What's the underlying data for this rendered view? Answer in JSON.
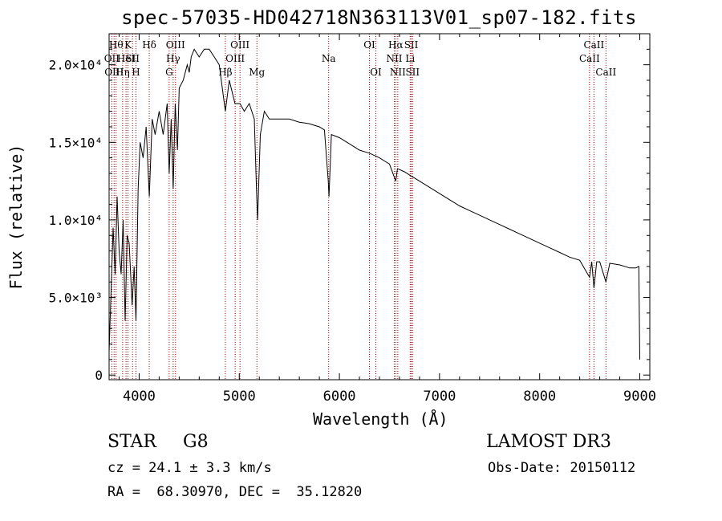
{
  "chart_data": {
    "type": "line",
    "title": "spec-57035-HD042718N363113V01_sp07-182.fits",
    "xlabel": "Wavelength (Å)",
    "ylabel": "Flux (relative)",
    "xlim": [
      3700,
      9100
    ],
    "ylim": [
      -300,
      22000
    ],
    "x_ticks": [
      {
        "value": 4000,
        "label": "4000"
      },
      {
        "value": 5000,
        "label": "5000"
      },
      {
        "value": 6000,
        "label": "6000"
      },
      {
        "value": 7000,
        "label": "7000"
      },
      {
        "value": 8000,
        "label": "8000"
      },
      {
        "value": 9000,
        "label": "9000"
      }
    ],
    "y_ticks": [
      {
        "value": 0,
        "label": "0"
      },
      {
        "value": 5000,
        "label": "5.0×10³"
      },
      {
        "value": 10000,
        "label": "1.0×10⁴"
      },
      {
        "value": 15000,
        "label": "1.5×10⁴"
      },
      {
        "value": 20000,
        "label": "2.0×10⁴"
      }
    ],
    "series": [
      {
        "name": "spectrum",
        "points": [
          [
            3700,
            1500
          ],
          [
            3720,
            5500
          ],
          [
            3740,
            9500
          ],
          [
            3760,
            6500
          ],
          [
            3780,
            11500
          ],
          [
            3800,
            8000
          ],
          [
            3820,
            6500
          ],
          [
            3840,
            10000
          ],
          [
            3860,
            3500
          ],
          [
            3880,
            9000
          ],
          [
            3900,
            8500
          ],
          [
            3930,
            4500
          ],
          [
            3950,
            7000
          ],
          [
            3968,
            3500
          ],
          [
            3990,
            12000
          ],
          [
            4010,
            15000
          ],
          [
            4040,
            14000
          ],
          [
            4070,
            16000
          ],
          [
            4101,
            11500
          ],
          [
            4130,
            16500
          ],
          [
            4160,
            15500
          ],
          [
            4200,
            17000
          ],
          [
            4240,
            15500
          ],
          [
            4280,
            17500
          ],
          [
            4300,
            13000
          ],
          [
            4320,
            16500
          ],
          [
            4340,
            12000
          ],
          [
            4360,
            17500
          ],
          [
            4383,
            14500
          ],
          [
            4400,
            18500
          ],
          [
            4440,
            19000
          ],
          [
            4480,
            20000
          ],
          [
            4500,
            19500
          ],
          [
            4520,
            20500
          ],
          [
            4550,
            21000
          ],
          [
            4600,
            20500
          ],
          [
            4650,
            21000
          ],
          [
            4700,
            21000
          ],
          [
            4750,
            20500
          ],
          [
            4800,
            20000
          ],
          [
            4861,
            17000
          ],
          [
            4900,
            19000
          ],
          [
            4957,
            17500
          ],
          [
            5007,
            17500
          ],
          [
            5050,
            17000
          ],
          [
            5100,
            17500
          ],
          [
            5150,
            16500
          ],
          [
            5172,
            12000
          ],
          [
            5183,
            10000
          ],
          [
            5210,
            15500
          ],
          [
            5250,
            17000
          ],
          [
            5300,
            16500
          ],
          [
            5400,
            16500
          ],
          [
            5500,
            16500
          ],
          [
            5600,
            16300
          ],
          [
            5700,
            16200
          ],
          [
            5800,
            16000
          ],
          [
            5850,
            15800
          ],
          [
            5889,
            12500
          ],
          [
            5896,
            11500
          ],
          [
            5920,
            15500
          ],
          [
            6000,
            15300
          ],
          [
            6100,
            14900
          ],
          [
            6150,
            14700
          ],
          [
            6200,
            14500
          ],
          [
            6300,
            14300
          ],
          [
            6400,
            14000
          ],
          [
            6450,
            13800
          ],
          [
            6500,
            13600
          ],
          [
            6563,
            12500
          ],
          [
            6580,
            13300
          ],
          [
            6650,
            13100
          ],
          [
            6700,
            12900
          ],
          [
            6800,
            12500
          ],
          [
            6900,
            12100
          ],
          [
            7000,
            11700
          ],
          [
            7100,
            11300
          ],
          [
            7200,
            10900
          ],
          [
            7300,
            10600
          ],
          [
            7400,
            10300
          ],
          [
            7500,
            10000
          ],
          [
            7600,
            9700
          ],
          [
            7700,
            9400
          ],
          [
            7800,
            9100
          ],
          [
            7900,
            8800
          ],
          [
            8000,
            8500
          ],
          [
            8100,
            8200
          ],
          [
            8200,
            7900
          ],
          [
            8300,
            7600
          ],
          [
            8400,
            7400
          ],
          [
            8498,
            6300
          ],
          [
            8520,
            7300
          ],
          [
            8542,
            5600
          ],
          [
            8570,
            7300
          ],
          [
            8600,
            7300
          ],
          [
            8662,
            6000
          ],
          [
            8700,
            7200
          ],
          [
            8800,
            7100
          ],
          [
            8900,
            6900
          ],
          [
            8960,
            6900
          ],
          [
            8990,
            7000
          ],
          [
            9000,
            1000
          ]
        ]
      }
    ],
    "line_markers": [
      {
        "wavelength": 3727,
        "label": "OII",
        "row": 2
      },
      {
        "wavelength": 3750,
        "label": "OIII",
        "row": 3
      },
      {
        "wavelength": 3770,
        "label": "Hθ",
        "row": 1
      },
      {
        "wavelength": 3835,
        "label": "Hη",
        "row": 3
      },
      {
        "wavelength": 3869,
        "label": "HeI",
        "row": 2
      },
      {
        "wavelength": 3889,
        "label": "K",
        "row": 1
      },
      {
        "wavelength": 3934,
        "label": "SII",
        "row": 2
      },
      {
        "wavelength": 3968,
        "label": "H",
        "row": 3
      },
      {
        "wavelength": 4101,
        "label": "Hδ",
        "row": 1
      },
      {
        "wavelength": 4300,
        "label": "G",
        "row": 3
      },
      {
        "wavelength": 4340,
        "label": "Hγ",
        "row": 2
      },
      {
        "wavelength": 4363,
        "label": "OIII",
        "row": 1
      },
      {
        "wavelength": 4861,
        "label": "Hβ",
        "row": 3
      },
      {
        "wavelength": 4959,
        "label": "OIII",
        "row": 2
      },
      {
        "wavelength": 5007,
        "label": "OIII",
        "row": 1
      },
      {
        "wavelength": 5176,
        "label": "Mg",
        "row": 3
      },
      {
        "wavelength": 5893,
        "label": "Na",
        "row": 2
      },
      {
        "wavelength": 6300,
        "label": "OI",
        "row": 1
      },
      {
        "wavelength": 6364,
        "label": "OI",
        "row": 3
      },
      {
        "wavelength": 6548,
        "label": "NII",
        "row": 2
      },
      {
        "wavelength": 6563,
        "label": "Hα",
        "row": 1
      },
      {
        "wavelength": 6583,
        "label": "NII",
        "row": 3
      },
      {
        "wavelength": 6707,
        "label": "Li",
        "row": 2
      },
      {
        "wavelength": 6717,
        "label": "SII",
        "row": 1
      },
      {
        "wavelength": 6731,
        "label": "SII",
        "row": 3
      },
      {
        "wavelength": 8498,
        "label": "CaII",
        "row": 2
      },
      {
        "wavelength": 8542,
        "label": "CaII",
        "row": 1
      },
      {
        "wavelength": 8662,
        "label": "CaII",
        "row": 3
      }
    ]
  },
  "info": {
    "object_class": "STAR",
    "subclass": "G8",
    "redshift": "cz = 24.1 ± 3.3 km/s",
    "coordinates": "RA =  68.30970, DEC =  35.12820",
    "survey": "LAMOST DR3",
    "obs_date": "Obs-Date: 20150112"
  }
}
